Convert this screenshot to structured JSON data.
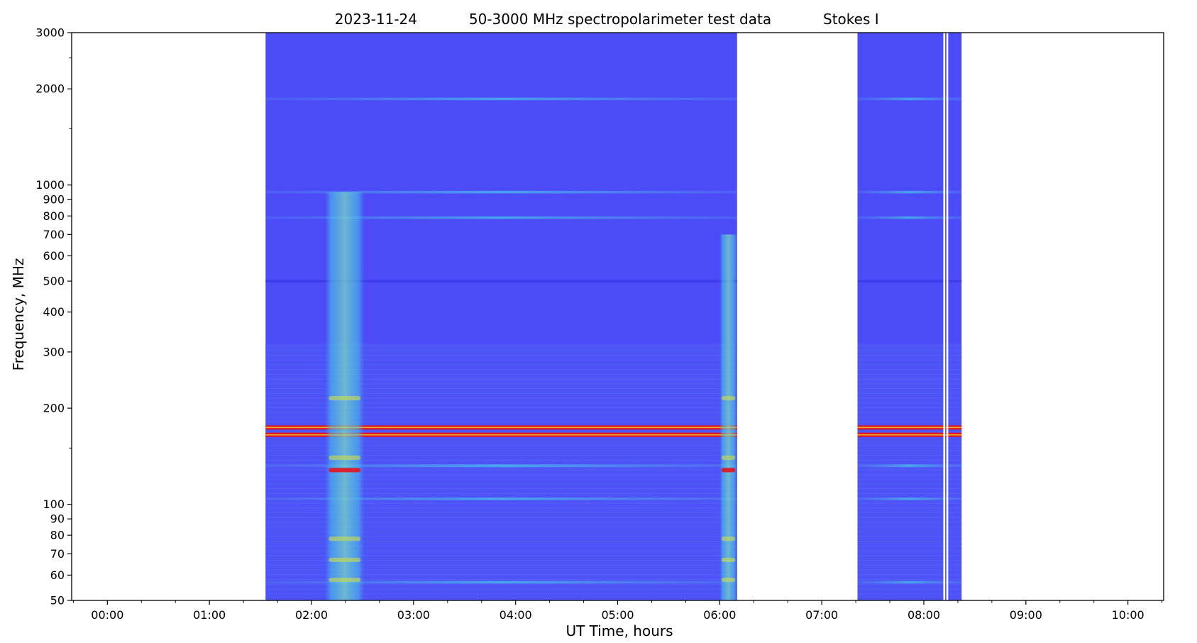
{
  "chart_data": {
    "type": "heatmap",
    "title_parts": [
      "2023-11-24",
      "50-3000 MHz spectropolarimeter test data",
      "Stokes I"
    ],
    "xlabel": "UT Time, hours",
    "ylabel": "Frequency, MHz",
    "x_scale": "linear",
    "y_scale": "log",
    "xlim_hours": [
      -0.35,
      10.35
    ],
    "ylim_mhz": [
      50,
      3000
    ],
    "x_ticks": [
      {
        "hour": 0,
        "label": "00:00"
      },
      {
        "hour": 1,
        "label": "01:00"
      },
      {
        "hour": 2,
        "label": "02:00"
      },
      {
        "hour": 3,
        "label": "03:00"
      },
      {
        "hour": 4,
        "label": "04:00"
      },
      {
        "hour": 5,
        "label": "05:00"
      },
      {
        "hour": 6,
        "label": "06:00"
      },
      {
        "hour": 7,
        "label": "07:00"
      },
      {
        "hour": 8,
        "label": "08:00"
      },
      {
        "hour": 9,
        "label": "09:00"
      },
      {
        "hour": 10,
        "label": "10:00"
      }
    ],
    "y_ticks": [
      {
        "mhz": 50,
        "label": "50"
      },
      {
        "mhz": 60,
        "label": "60"
      },
      {
        "mhz": 70,
        "label": "70"
      },
      {
        "mhz": 80,
        "label": "80"
      },
      {
        "mhz": 90,
        "label": "90"
      },
      {
        "mhz": 100,
        "label": "100"
      },
      {
        "mhz": 200,
        "label": "200"
      },
      {
        "mhz": 300,
        "label": "300"
      },
      {
        "mhz": 400,
        "label": "400"
      },
      {
        "mhz": 500,
        "label": "500"
      },
      {
        "mhz": 600,
        "label": "600"
      },
      {
        "mhz": 700,
        "label": "700"
      },
      {
        "mhz": 800,
        "label": "800"
      },
      {
        "mhz": 900,
        "label": "900"
      },
      {
        "mhz": 1000,
        "label": "1000"
      },
      {
        "mhz": 2000,
        "label": "2000"
      },
      {
        "mhz": 3000,
        "label": "3000"
      }
    ],
    "y_minor_ticks_mhz": [
      150,
      1500,
      2500
    ],
    "colormap": "rainbow",
    "colors": {
      "background": "#4b4cf7",
      "lowband": "#4f58f5",
      "cyan": "#45c8ea",
      "red": "#e8121b",
      "yellow": "#d9e23d",
      "gap": "#ffffff"
    },
    "data_segments_hours": [
      [
        1.55,
        6.17
      ],
      [
        7.35,
        8.37
      ]
    ],
    "gap_lines_hours": [
      8.2,
      8.23
    ],
    "bands": [
      {
        "mhz": 1860,
        "level": "light"
      },
      {
        "mhz": 950,
        "level": "light"
      },
      {
        "mhz": 790,
        "level": "light"
      },
      {
        "mhz": 500,
        "level": "dark"
      },
      {
        "mhz": 174,
        "level": "saturated"
      },
      {
        "mhz": 165,
        "level": "saturated"
      },
      {
        "mhz": 132,
        "level": "bright"
      },
      {
        "mhz": 104,
        "level": "light"
      },
      {
        "mhz": 57,
        "level": "light"
      }
    ],
    "bursts": [
      {
        "t_start": 2.13,
        "t_end": 2.52,
        "f_low": 50,
        "f_high": 950
      },
      {
        "t_start": 6.0,
        "t_end": 6.17,
        "f_low": 50,
        "f_high": 700
      }
    ]
  }
}
